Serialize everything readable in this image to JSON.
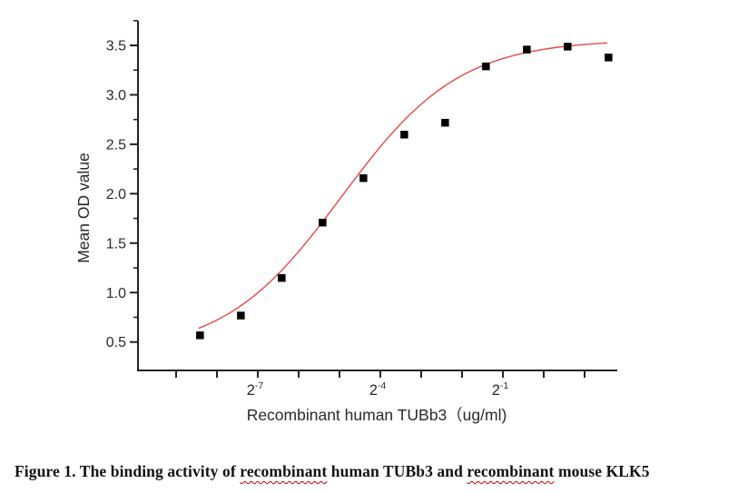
{
  "figure": {
    "caption_segments": [
      {
        "text": "Figure 1. The binding activity of ",
        "squiggle": false
      },
      {
        "text": "recombinant",
        "squiggle": true
      },
      {
        "text": " human TUBb3 and ",
        "squiggle": false
      },
      {
        "text": "recombinant",
        "squiggle": true
      },
      {
        "text": " mouse KLK5",
        "squiggle": false
      }
    ],
    "squiggle_color": "#c00000"
  },
  "chart_data": {
    "type": "scatter",
    "title": "",
    "xlabel": "Recombinant human TUBb3（ug/ml)",
    "ylabel": "Mean OD value",
    "x_scale": "log2",
    "x_unit": "ug/ml",
    "xlim_exp": [
      -9.93,
      1.8
    ],
    "ylim": [
      0.21,
      3.75
    ],
    "grid": false,
    "legend": "none",
    "axis_color": "#222222",
    "tick_label_color": "#2a2a2a",
    "series": [
      {
        "name": "Mean OD value",
        "marker": "square",
        "marker_color": "#000000",
        "x_exponents": [
          -8.42,
          -7.42,
          -6.42,
          -5.42,
          -4.42,
          -3.42,
          -2.42,
          -1.42,
          -0.42,
          0.58,
          1.58
        ],
        "concentrations_ug_ml": [
          0.0029,
          0.0059,
          0.0117,
          0.0234,
          0.0469,
          0.0938,
          0.1875,
          0.375,
          0.75,
          1.5,
          3
        ],
        "od_values": [
          0.57,
          0.77,
          1.15,
          1.71,
          2.16,
          2.6,
          2.72,
          3.29,
          3.46,
          3.49,
          3.38
        ]
      }
    ],
    "fit_curve": {
      "type": "4PL-logistic",
      "color": "#ea4747",
      "bottom": 0.38,
      "top": 3.56,
      "ec50_exp": -4.95,
      "hill_log2": 1.0,
      "x_start_exp": -8.45,
      "x_end_exp": 1.62
    },
    "y_ticks": {
      "major_values": [
        0.5,
        1.0,
        1.5,
        2.0,
        2.5,
        3.0,
        3.5
      ],
      "major_labels": [
        "0.5",
        "1.0",
        "1.5",
        "2.0",
        "2.5",
        "3.0",
        "3.5"
      ],
      "minor_values": [
        0.75,
        1.25,
        1.75,
        2.25,
        2.75,
        3.25,
        3.75
      ]
    },
    "x_ticks": {
      "exponents": [
        -9,
        -8,
        -7,
        -6,
        -5,
        -4,
        -3,
        -2,
        -1,
        0,
        1
      ],
      "labeled": [
        {
          "exp": -7,
          "base": "2",
          "sup": "-7"
        },
        {
          "exp": -4,
          "base": "2",
          "sup": "-4"
        },
        {
          "exp": -1,
          "base": "2",
          "sup": "-1"
        }
      ]
    }
  }
}
